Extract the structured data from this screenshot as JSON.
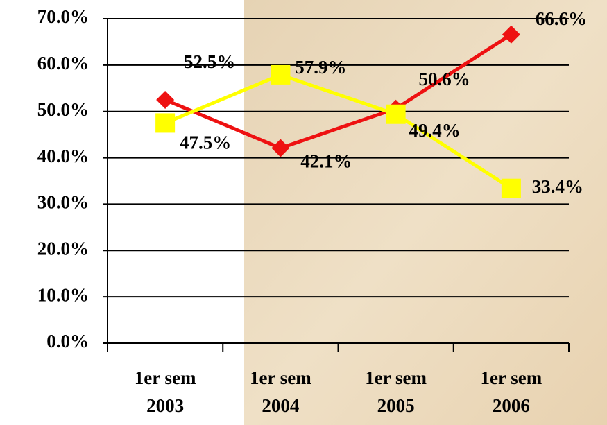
{
  "chart_data": {
    "type": "line",
    "categories": [
      [
        "1er sem",
        "2003"
      ],
      [
        "1er sem",
        "2004"
      ],
      [
        "1er sem",
        "2005"
      ],
      [
        "1er sem",
        "2006"
      ]
    ],
    "series": [
      {
        "color": "#ee1111",
        "marker": "diamond",
        "values": [
          52.5,
          42.1,
          50.6,
          66.6
        ],
        "value_labels": [
          "52.5%",
          "42.1%",
          "50.6%",
          "66.6%"
        ]
      },
      {
        "color": "#ffff00",
        "marker": "square",
        "values": [
          47.5,
          57.9,
          49.4,
          33.4
        ],
        "value_labels": [
          "47.5%",
          "57.9%",
          "49.4%",
          "33.4%"
        ]
      }
    ],
    "ylim": [
      0,
      70
    ],
    "yticks": [
      {
        "value": 0,
        "label": "0.0%"
      },
      {
        "value": 10,
        "label": "10.0%"
      },
      {
        "value": 20,
        "label": "20.0%"
      },
      {
        "value": 30,
        "label": "30.0%"
      },
      {
        "value": 40,
        "label": "40.0%"
      },
      {
        "value": 50,
        "label": "50.0%"
      },
      {
        "value": 60,
        "label": "60.0%"
      },
      {
        "value": 70,
        "label": "70.0%"
      }
    ],
    "grid": true
  }
}
